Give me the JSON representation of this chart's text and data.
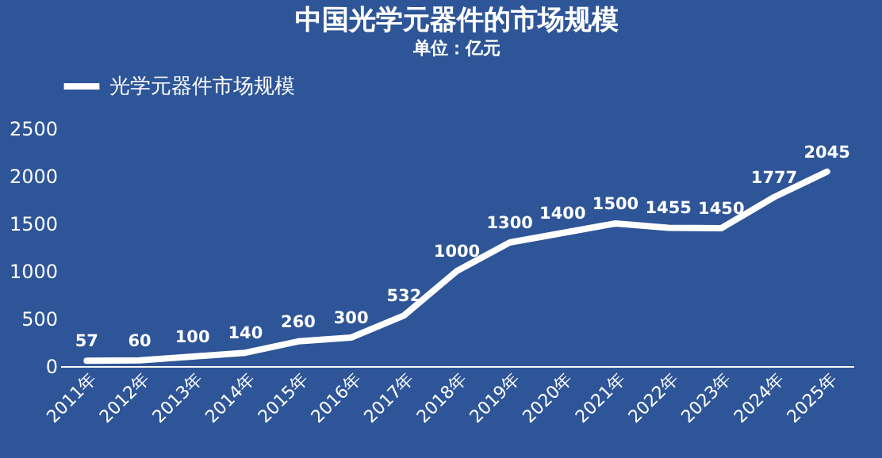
{
  "chart_data": {
    "type": "line",
    "title": "中国光学元器件的市场规模",
    "subtitle": "单位：亿元",
    "categories": [
      "2011年",
      "2012年",
      "2013年",
      "2014年",
      "2015年",
      "2016年",
      "2017年",
      "2018年",
      "2019年",
      "2020年",
      "2021年",
      "2022年",
      "2023年",
      "2024年",
      "2025年"
    ],
    "series": [
      {
        "name": "光学元器件市场规模",
        "color": "#ffffff",
        "values": [
          57,
          60,
          100,
          140,
          260,
          300,
          532,
          1000,
          1300,
          1400,
          1500,
          1455,
          1450,
          1777,
          2045
        ]
      }
    ],
    "ylim": [
      0,
      2500
    ],
    "yticks": [
      0,
      500,
      1000,
      1500,
      2000,
      2500
    ],
    "data_labels": true,
    "legend": "top",
    "grid": false,
    "marker": "none",
    "line_style": "solid"
  }
}
